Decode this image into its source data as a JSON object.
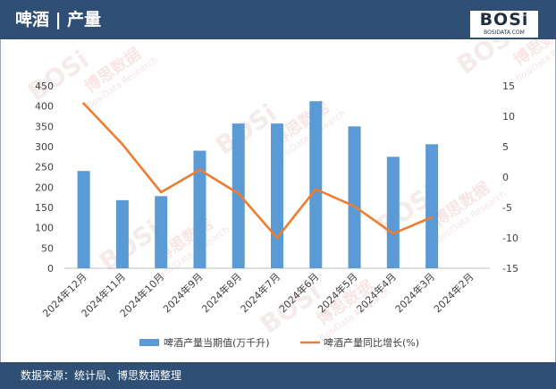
{
  "header": {
    "title": "啤酒 | 产量",
    "logo_text": "BOSi",
    "logo_subtext": "BOSIDATA.COM"
  },
  "footer": {
    "source": "数据来源：统计局、博思数据整理"
  },
  "watermark": {
    "text_cn": "博思数据",
    "text_en": "BosiData Research",
    "logo": "BOSi"
  },
  "colors": {
    "header_bg": "#2f4f74",
    "bar": "#5b9bd5",
    "line": "#ed7d31",
    "grid": "#d9d9d9"
  },
  "chart_data": {
    "type": "bar",
    "categories": [
      "2024年12月",
      "2024年11月",
      "2024年10月",
      "2024年9月",
      "2024年8月",
      "2024年7月",
      "2024年6月",
      "2024年5月",
      "2024年4月",
      "2024年3月",
      "2024年2月"
    ],
    "series": [
      {
        "name": "啤酒产量当期值(万千升)",
        "type": "bar",
        "axis": "left",
        "values": [
          240,
          168,
          178,
          290,
          357,
          357,
          412,
          350,
          275,
          306,
          null
        ]
      },
      {
        "name": "啤酒产量同比增长(%)",
        "type": "line",
        "axis": "right",
        "values": [
          12.1,
          5.4,
          -2.5,
          1.2,
          -2.7,
          -10.0,
          -2.0,
          -4.8,
          -9.3,
          -6.6,
          null
        ]
      }
    ],
    "y_left": {
      "min": 0,
      "max": 450,
      "ticks": [
        0,
        50,
        100,
        150,
        200,
        250,
        300,
        350,
        400,
        450
      ]
    },
    "y_right": {
      "min": -15,
      "max": 15,
      "ticks": [
        15,
        10,
        5,
        0,
        -5,
        -10,
        -15
      ]
    },
    "grid": false,
    "legend_position": "bottom"
  }
}
